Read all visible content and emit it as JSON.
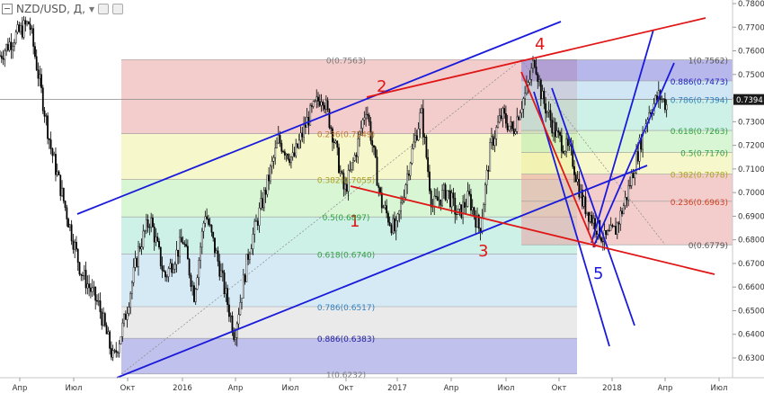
{
  "header": {
    "symbol": "NZD/USD, Д,",
    "minimize_icon": "minimize-icon",
    "dropdown_icon": "chevron-down-icon",
    "settings_icon": "settings-icon",
    "eye_icon": "eye-icon"
  },
  "colors": {
    "candle": "#000000",
    "trend_blue": "#1a1adb",
    "trend_red": "#e01616",
    "price_tag_bg": "#1a1a1a",
    "price_tag_text": "#ffffff"
  },
  "chart_data": {
    "type": "candlestick",
    "title": "NZD/USD, Д,",
    "xlabel": "",
    "ylabel": "",
    "ylim": [
      0.6232,
      0.78
    ],
    "x_ticks": [
      "Апр",
      "Июл",
      "Окт",
      "2016",
      "Апр",
      "Июл",
      "Окт",
      "2017",
      "Апр",
      "Июл",
      "Окт",
      "2018",
      "Апр",
      "Июл"
    ],
    "y_ticks": [
      "0.7800",
      "0.7700",
      "0.7600",
      "0.7500",
      "0.7400",
      "0.7300",
      "0.7200",
      "0.7100",
      "0.7000",
      "0.6900",
      "0.6800",
      "0.6700",
      "0.6600",
      "0.6500",
      "0.6400",
      "0.6300"
    ],
    "current_price": "0.7394",
    "price_path": [
      [
        0,
        0.758
      ],
      [
        0.02,
        0.766
      ],
      [
        0.04,
        0.772
      ],
      [
        0.07,
        0.718
      ],
      [
        0.11,
        0.667
      ],
      [
        0.135,
        0.652
      ],
      [
        0.155,
        0.629
      ],
      [
        0.17,
        0.646
      ],
      [
        0.19,
        0.677
      ],
      [
        0.205,
        0.689
      ],
      [
        0.225,
        0.664
      ],
      [
        0.25,
        0.68
      ],
      [
        0.265,
        0.657
      ],
      [
        0.28,
        0.692
      ],
      [
        0.3,
        0.668
      ],
      [
        0.32,
        0.64
      ],
      [
        0.34,
        0.676
      ],
      [
        0.36,
        0.698
      ],
      [
        0.38,
        0.722
      ],
      [
        0.4,
        0.714
      ],
      [
        0.42,
        0.731
      ],
      [
        0.44,
        0.742
      ],
      [
        0.455,
        0.724
      ],
      [
        0.47,
        0.7
      ],
      [
        0.485,
        0.716
      ],
      [
        0.5,
        0.737
      ],
      [
        0.52,
        0.696
      ],
      [
        0.54,
        0.683
      ],
      [
        0.56,
        0.714
      ],
      [
        0.575,
        0.734
      ],
      [
        0.59,
        0.694
      ],
      [
        0.61,
        0.701
      ],
      [
        0.625,
        0.69
      ],
      [
        0.64,
        0.698
      ],
      [
        0.655,
        0.684
      ],
      [
        0.67,
        0.72
      ],
      [
        0.685,
        0.733
      ],
      [
        0.7,
        0.726
      ],
      [
        0.71,
        0.736
      ],
      [
        0.72,
        0.744
      ],
      [
        0.73,
        0.757
      ],
      [
        0.74,
        0.74
      ],
      [
        0.76,
        0.724
      ],
      [
        0.78,
        0.716
      ],
      [
        0.795,
        0.696
      ],
      [
        0.81,
        0.688
      ],
      [
        0.825,
        0.68
      ],
      [
        0.84,
        0.684
      ],
      [
        0.855,
        0.698
      ],
      [
        0.87,
        0.716
      ],
      [
        0.885,
        0.734
      ],
      [
        0.9,
        0.741
      ],
      [
        0.91,
        0.737
      ]
    ],
    "fib_retracement_left": {
      "levels": [
        {
          "label": "0(0.7563)",
          "value": 0.7563
        },
        {
          "label": "0.236(0.7249)",
          "value": 0.7249
        },
        {
          "label": "0.382(0.7055)",
          "value": 0.7055
        },
        {
          "label": "0.5(0.6897)",
          "value": 0.6897
        },
        {
          "label": "0.618(0.6740)",
          "value": 0.674
        },
        {
          "label": "0.786(0.6517)",
          "value": 0.6517
        },
        {
          "label": "0.886(0.6383)",
          "value": 0.6383
        },
        {
          "label": "1(0.6232)",
          "value": 0.6232
        }
      ]
    },
    "fib_retracement_right": {
      "levels": [
        {
          "label": "1(0.7562)",
          "value": 0.7562
        },
        {
          "label": "0.886(0.7473)",
          "value": 0.7473
        },
        {
          "label": "0.786(0.7394)",
          "value": 0.7394
        },
        {
          "label": "0.618(0.7263)",
          "value": 0.7263
        },
        {
          "label": "0.5(0.7170)",
          "value": 0.717
        },
        {
          "label": "0.382(0.7078)",
          "value": 0.7078
        },
        {
          "label": "0.236(0.6963)",
          "value": 0.6963
        },
        {
          "label": "0(0.6779)",
          "value": 0.6779
        }
      ]
    },
    "annotations": [
      "1",
      "2",
      "3",
      "4",
      "5"
    ],
    "grid": false,
    "legend": "none"
  }
}
